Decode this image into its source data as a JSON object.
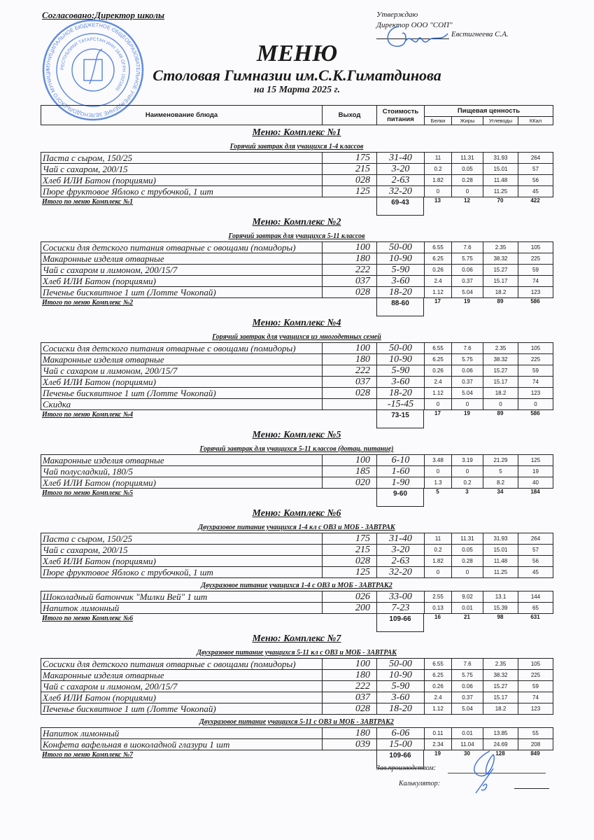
{
  "header": {
    "agreed": "Согласовано:Директор школы",
    "approve": "Утверждаю",
    "director": "Директор ООО \"СОП\"",
    "approver_name": "Евстигнеева С.А.",
    "title": "МЕНЮ",
    "subtitle": "Столовая Гимназии им.С.К.Гиматдинова",
    "date": "на 15 Марта 2025 г."
  },
  "stamp_text": "МУНИЦИПАЛЬНОЕ БЮДЖЕТНОЕ ОБЩЕОБРАЗОВАТЕЛЬНОЕ УЧРЕЖДЕНИЕ ЗЕЛЕНОДОЛЬСКОГО МУНИЦИПАЛЬНОГО РАЙОНА РЕСПУБЛИКИ ТАТАРСТАН ИНН 1648...",
  "columns": {
    "name": "Наименование блюда",
    "output": "Выход",
    "cost_1": "Стоимость",
    "cost_2": "питания",
    "nutrition": "Пищевая ценность",
    "protein": "Белки",
    "fat": "Жиры",
    "carbs": "Углеводы",
    "kcal": "ККал"
  },
  "sections": [
    {
      "title": "Меню: Комплекс №1",
      "groups": [
        {
          "subtitle": "Горячий завтрак для учащихся 1-4 классов",
          "rows": [
            [
              "Паста с сыром, 150/25",
              "175",
              "31-40",
              "11",
              "11.31",
              "31.93",
              "264"
            ],
            [
              "Чай с сахаром, 200/15",
              "215",
              "3-20",
              "0.2",
              "0.05",
              "15.01",
              "57"
            ],
            [
              "Хлеб ИЛИ Батон (порциями)",
              "028",
              "2-63",
              "1.82",
              "0.28",
              "11.48",
              "56"
            ],
            [
              "Пюре фруктовое Яблоко с трубочкой, 1 шт",
              "125",
              "32-20",
              "0",
              "0",
              "11.25",
              "45"
            ]
          ]
        }
      ],
      "total": [
        "Итого по меню Комплекс №1",
        "69-43",
        "13",
        "12",
        "70",
        "422"
      ]
    },
    {
      "title": "Меню: Комплекс №2",
      "groups": [
        {
          "subtitle": "Горячий завтрак для учащихся 5-11 классов",
          "rows": [
            [
              "Сосиски для детского питания отварные с овощами (помидоры)",
              "100",
              "50-00",
              "6.55",
              "7.6",
              "2.35",
              "105"
            ],
            [
              "Макаронные изделия отварные",
              "180",
              "10-90",
              "6.25",
              "5.75",
              "38.32",
              "225"
            ],
            [
              "Чай с сахаром и лимоном, 200/15/7",
              "222",
              "5-90",
              "0.26",
              "0.06",
              "15.27",
              "59"
            ],
            [
              "Хлеб ИЛИ Батон (порциями)",
              "037",
              "3-60",
              "2.4",
              "0.37",
              "15.17",
              "74"
            ],
            [
              "Печенье бисквитное 1 шт (Лотте Чокопай)",
              "028",
              "18-20",
              "1.12",
              "5.04",
              "18.2",
              "123"
            ]
          ]
        }
      ],
      "total": [
        "Итого по меню Комплекс №2",
        "88-60",
        "17",
        "19",
        "89",
        "586"
      ]
    },
    {
      "title": "Меню: Комплекс №4",
      "groups": [
        {
          "subtitle": "Горячий завтрак для учащихся из многодетных семей",
          "rows": [
            [
              "Сосиски для детского питания отварные с овощами (помидоры)",
              "100",
              "50-00",
              "6.55",
              "7.6",
              "2.35",
              "105"
            ],
            [
              "Макаронные изделия отварные",
              "180",
              "10-90",
              "6.25",
              "5.75",
              "38.32",
              "225"
            ],
            [
              "Чай с сахаром и лимоном, 200/15/7",
              "222",
              "5-90",
              "0.26",
              "0.06",
              "15.27",
              "59"
            ],
            [
              "Хлеб ИЛИ Батон (порциями)",
              "037",
              "3-60",
              "2.4",
              "0.37",
              "15.17",
              "74"
            ],
            [
              "Печенье бисквитное 1 шт (Лотте Чокопай)",
              "028",
              "18-20",
              "1.12",
              "5.04",
              "18.2",
              "123"
            ],
            [
              "Скидка",
              "",
              "-15-45",
              "0",
              "0",
              "0",
              "0"
            ]
          ]
        }
      ],
      "total": [
        "Итого по меню Комплекс №4",
        "73-15",
        "17",
        "19",
        "89",
        "586"
      ]
    },
    {
      "title": "Меню: Комплекс №5",
      "groups": [
        {
          "subtitle": "Горячий завтрак для учащихся 5-11 классов (дотац. питание)",
          "rows": [
            [
              "Макаронные изделия отварные",
              "100",
              "6-10",
              "3.48",
              "3.19",
              "21.29",
              "125"
            ],
            [
              "Чай полусладкий, 180/5",
              "185",
              "1-60",
              "0",
              "0",
              "5",
              "19"
            ],
            [
              "Хлеб ИЛИ Батон (порциями)",
              "020",
              "1-90",
              "1.3",
              "0.2",
              "8.2",
              "40"
            ]
          ]
        }
      ],
      "total": [
        "Итого по меню Комплекс №5",
        "9-60",
        "5",
        "3",
        "34",
        "184"
      ]
    },
    {
      "title": "Меню: Комплекс №6",
      "groups": [
        {
          "subtitle": "Двухразовое питание учащихся 1-4 кл с ОВЗ и МОБ - ЗАВТРАК",
          "rows": [
            [
              "Паста с сыром, 150/25",
              "175",
              "31-40",
              "11",
              "11.31",
              "31.93",
              "264"
            ],
            [
              "Чай с сахаром, 200/15",
              "215",
              "3-20",
              "0.2",
              "0.05",
              "15.01",
              "57"
            ],
            [
              "Хлеб ИЛИ Батон (порциями)",
              "028",
              "2-63",
              "1.82",
              "0.28",
              "11.48",
              "56"
            ],
            [
              "Пюре фруктовое Яблоко с трубочкой, 1 шт",
              "125",
              "32-20",
              "0",
              "0",
              "11.25",
              "45"
            ]
          ]
        },
        {
          "subtitle": "Двухразовое питание учащихся 1-4 с ОВЗ и МОБ - ЗАВТРАК2",
          "rows": [
            [
              "Шоколадный батончик \"Милки Вей\" 1 шт",
              "026",
              "33-00",
              "2.55",
              "9.02",
              "13.1",
              "144"
            ],
            [
              "Напиток лимонный",
              "200",
              "7-23",
              "0.13",
              "0.01",
              "15.39",
              "65"
            ]
          ]
        }
      ],
      "total": [
        "Итого по меню Комплекс №6",
        "109-66",
        "16",
        "21",
        "98",
        "631"
      ]
    },
    {
      "title": "Меню: Комплекс №7",
      "groups": [
        {
          "subtitle": "Двухразовое питание учащихся 5-11 кл с  ОВЗ и МОБ - ЗАВТРАК",
          "rows": [
            [
              "Сосиски для детского питания отварные с овощами (помидоры)",
              "100",
              "50-00",
              "6.55",
              "7.6",
              "2.35",
              "105"
            ],
            [
              "Макаронные изделия отварные",
              "180",
              "10-90",
              "6.25",
              "5.75",
              "38.32",
              "225"
            ],
            [
              "Чай с сахаром и лимоном, 200/15/7",
              "222",
              "5-90",
              "0.26",
              "0.06",
              "15.27",
              "59"
            ],
            [
              "Хлеб ИЛИ Батон (порциями)",
              "037",
              "3-60",
              "2.4",
              "0.37",
              "15.17",
              "74"
            ],
            [
              "Печенье бисквитное 1 шт (Лотте Чокопай)",
              "028",
              "18-20",
              "1.12",
              "5.04",
              "18.2",
              "123"
            ]
          ]
        },
        {
          "subtitle": "Двухразовое питание учащихся 5-11 с ОВЗ и МОБ - ЗАВТРАК2",
          "rows": [
            [
              "Напиток лимонный",
              "180",
              "6-06",
              "0.11",
              "0.01",
              "13.85",
              "55"
            ],
            [
              "Конфета вафельная в шоколадной глазури 1 шт",
              "039",
              "15-00",
              "2.34",
              "11.04",
              "24.69",
              "208"
            ]
          ]
        }
      ],
      "total": [
        "Итого по меню Комплекс №7",
        "109-66",
        "19",
        "30",
        "128",
        "849"
      ]
    }
  ],
  "footer": {
    "production_head": "Зав.производством:",
    "calculator": "Калькулятор:"
  },
  "colors": {
    "stamp": "#3b6fd6",
    "signature": "#3b6fd6",
    "ink": "#1a1a1a"
  }
}
